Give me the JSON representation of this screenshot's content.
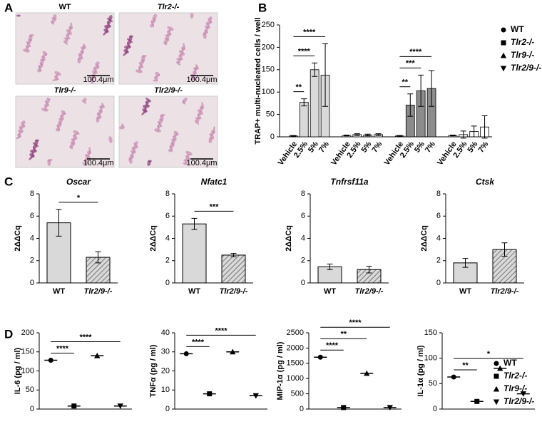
{
  "panels": [
    "A",
    "B",
    "C",
    "D"
  ],
  "images": [
    {
      "label": "WT",
      "scale": "100.4μm"
    },
    {
      "label": "Tlr2-/-",
      "scale": "100.4μm"
    },
    {
      "label": "Tlr9-/-",
      "scale": "100.4μm"
    },
    {
      "label": "Tlr2/9-/-",
      "scale": "100.4μm"
    }
  ],
  "chart_data": [
    {
      "type": "bar",
      "ylabel": "TRAP+ multi-nucleated cells / well",
      "categories": [
        "Vehicle",
        "2.5%",
        "5%",
        "7%"
      ],
      "ylim": [
        0,
        250
      ],
      "yticks": [
        0,
        50,
        100,
        150,
        200,
        250
      ],
      "series": [
        {
          "name": "WT",
          "color": "#d9d9d9",
          "marker": "circle",
          "values": [
            2,
            77,
            150,
            138
          ],
          "errors": [
            1,
            8,
            15,
            70
          ]
        },
        {
          "name": "Tlr2-/-",
          "color": "#f2f2f2",
          "marker": "square",
          "values": [
            3,
            5,
            4,
            5
          ],
          "errors": [
            1,
            2,
            2,
            2
          ]
        },
        {
          "name": "Tlr9-/-",
          "color": "#8c8c8c",
          "marker": "triangle-up",
          "values": [
            2,
            71,
            103,
            108
          ],
          "errors": [
            1,
            25,
            35,
            40
          ]
        },
        {
          "name": "Tlr2/9-/-",
          "color": "#ffffff",
          "marker": "triangle-down",
          "values": [
            3,
            5,
            12,
            22
          ],
          "errors": [
            1,
            8,
            12,
            25
          ]
        }
      ],
      "annotations": [
        {
          "series": 0,
          "from": 0,
          "to": 1,
          "text": "**"
        },
        {
          "series": 0,
          "from": 0,
          "to": 2,
          "text": "****"
        },
        {
          "series": 0,
          "from": 0,
          "to": 3,
          "text": "****"
        },
        {
          "series": 2,
          "from": 0,
          "to": 1,
          "text": "**"
        },
        {
          "series": 2,
          "from": 0,
          "to": 2,
          "text": "***"
        },
        {
          "series": 2,
          "from": 0,
          "to": 3,
          "text": "****"
        }
      ],
      "legend": true
    },
    {
      "type": "bar",
      "title": "Oscar",
      "ylabel": "2ΔΔCq",
      "categories": [
        "WT",
        "Tlr2/9-/-"
      ],
      "values": [
        5.4,
        2.3
      ],
      "errors": [
        1.2,
        0.5
      ],
      "color": "#d9d9d9",
      "fills": [
        "solid",
        "hatched"
      ],
      "ylim": [
        0,
        8
      ],
      "yticks": [
        0,
        2,
        4,
        6,
        8
      ],
      "annotations": [
        {
          "from": 0,
          "to": 1,
          "text": "*"
        }
      ]
    },
    {
      "type": "bar",
      "title": "Nfatc1",
      "ylabel": "2ΔΔCq",
      "categories": [
        "WT",
        "Tlr2/9-/-"
      ],
      "values": [
        5.3,
        2.5
      ],
      "errors": [
        0.5,
        0.15
      ],
      "color": "#d9d9d9",
      "fills": [
        "solid",
        "hatched"
      ],
      "ylim": [
        0,
        8
      ],
      "yticks": [
        0,
        2,
        4,
        6,
        8
      ],
      "annotations": [
        {
          "from": 0,
          "to": 1,
          "text": "***"
        }
      ]
    },
    {
      "type": "bar",
      "title": "Tnfrsf11a",
      "ylabel": "2ΔΔCq",
      "categories": [
        "WT",
        "Tlr2/9-/-"
      ],
      "values": [
        1.45,
        1.2
      ],
      "errors": [
        0.25,
        0.3
      ],
      "color": "#d9d9d9",
      "fills": [
        "solid",
        "hatched"
      ],
      "ylim": [
        0,
        8
      ],
      "yticks": [
        0,
        2,
        4,
        6,
        8
      ]
    },
    {
      "type": "bar",
      "title": "Ctsk",
      "ylabel": "2ΔΔCq",
      "categories": [
        "WT",
        "Tlr2/9-/-"
      ],
      "values": [
        1.8,
        3.0
      ],
      "errors": [
        0.4,
        0.6
      ],
      "color": "#d9d9d9",
      "fills": [
        "solid",
        "hatched"
      ],
      "ylim": [
        0,
        8
      ],
      "yticks": [
        0,
        2,
        4,
        6,
        8
      ]
    },
    {
      "type": "dot",
      "ylabel": "IL-6 (pg / ml)",
      "categories": [
        null,
        null,
        null,
        null
      ],
      "values": [
        128,
        8,
        140,
        8
      ],
      "markers": [
        "circle",
        "square",
        "triangle-up",
        "triangle-down"
      ],
      "ylim": [
        0,
        200
      ],
      "yticks": [
        0,
        50,
        100,
        150,
        200
      ],
      "annotations": [
        {
          "from": 0,
          "to": 1,
          "text": "****"
        },
        {
          "from": 0,
          "to": 3,
          "text": "****"
        }
      ]
    },
    {
      "type": "dot",
      "ylabel": "TNFα (pg / ml)",
      "categories": [
        null,
        null,
        null,
        null
      ],
      "values": [
        29,
        8,
        30,
        7
      ],
      "markers": [
        "circle",
        "square",
        "triangle-up",
        "triangle-down"
      ],
      "ylim": [
        0,
        40
      ],
      "yticks": [
        0,
        10,
        20,
        30,
        40
      ],
      "annotations": [
        {
          "from": 0,
          "to": 1,
          "text": "****"
        },
        {
          "from": 0,
          "to": 3,
          "text": "****"
        }
      ]
    },
    {
      "type": "dot",
      "ylabel": "MIP-1α (pg / ml)",
      "categories": [
        null,
        null,
        null,
        null
      ],
      "values": [
        1700,
        50,
        1170,
        50
      ],
      "markers": [
        "circle",
        "square",
        "triangle-up",
        "triangle-down"
      ],
      "ylim": [
        0,
        2500
      ],
      "yticks": [
        0,
        500,
        1000,
        1500,
        2000,
        2500
      ],
      "annotations": [
        {
          "from": 0,
          "to": 1,
          "text": "****"
        },
        {
          "from": 0,
          "to": 2,
          "text": "**"
        },
        {
          "from": 0,
          "to": 3,
          "text": "****"
        }
      ]
    },
    {
      "type": "dot",
      "ylabel": "IL-1α (pg / ml)",
      "categories": [
        null,
        null,
        null,
        null
      ],
      "values": [
        63,
        15,
        80,
        30
      ],
      "markers": [
        "circle",
        "square",
        "triangle-up",
        "triangle-down"
      ],
      "ylim": [
        0,
        150
      ],
      "yticks": [
        0,
        50,
        100,
        150
      ],
      "annotations": [
        {
          "from": 0,
          "to": 1,
          "text": "**"
        },
        {
          "from": 0,
          "to": 3,
          "text": "*"
        }
      ],
      "legend": [
        "WT",
        "Tlr2-/-",
        "Tlr9-/-",
        "Tlr2/9-/-"
      ]
    }
  ]
}
